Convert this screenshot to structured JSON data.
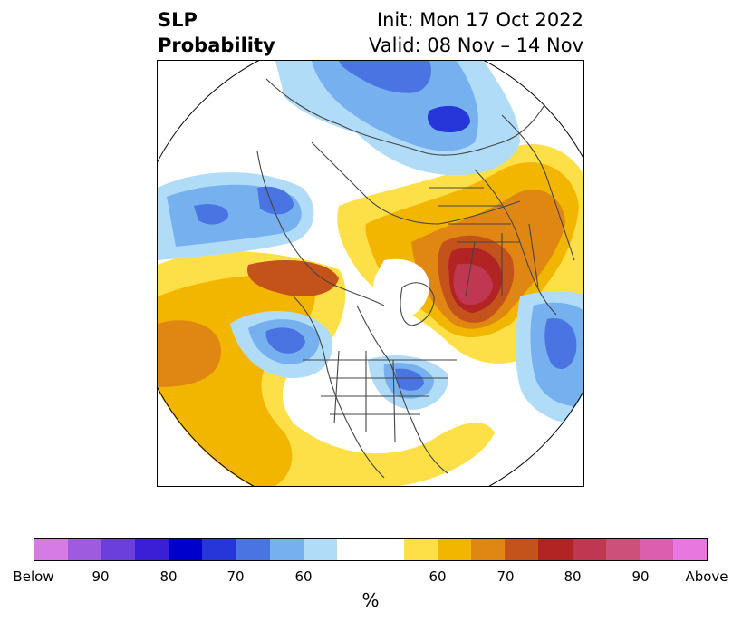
{
  "header": {
    "title_line1": "SLP",
    "title_line2": "Probability",
    "init": "Init: Mon 17 Oct 2022",
    "valid": "Valid: 08 Nov – 14 Nov"
  },
  "colorbar": {
    "colors": [
      "#d67ae6",
      "#9e5be0",
      "#6b3fdc",
      "#3a1fd6",
      "#0000cc",
      "#2636d8",
      "#4a74e2",
      "#76b0ee",
      "#b0dcf8",
      "#ffffff",
      "#ffffff",
      "#fde047",
      "#f3b600",
      "#df8712",
      "#c4521b",
      "#b22323",
      "#c03751",
      "#cc507a",
      "#db5fae",
      "#e878e0"
    ],
    "labels": [
      "Below",
      "90",
      "80",
      "70",
      "60",
      "60",
      "70",
      "80",
      "90",
      "Above"
    ],
    "units": "%"
  }
}
